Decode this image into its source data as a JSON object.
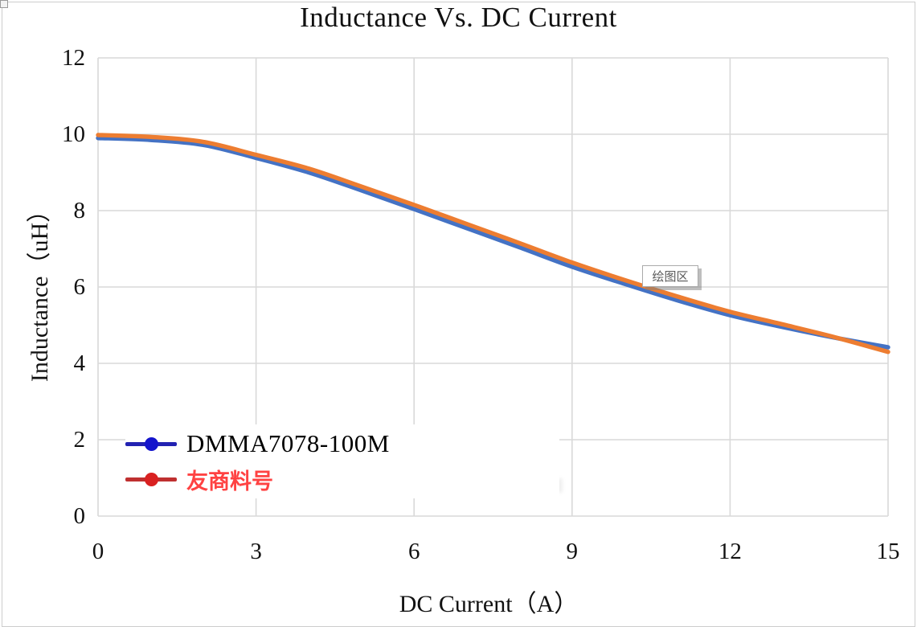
{
  "chart_data": {
    "type": "line",
    "title": "Inductance Vs. DC Current",
    "xlabel": "DC Current（A）",
    "ylabel": "Inductance（uH）",
    "xlim": [
      0,
      15
    ],
    "ylim": [
      0,
      12
    ],
    "x_ticks": [
      0,
      3,
      6,
      9,
      12,
      15
    ],
    "y_ticks": [
      0,
      2,
      4,
      6,
      8,
      10,
      12
    ],
    "grid": true,
    "gridline_color": "#d9d9d9",
    "legend_position": "inside-bottom-left",
    "x": [
      0,
      1,
      2,
      3,
      4,
      5,
      6,
      7,
      8,
      9,
      10,
      11,
      12,
      13,
      14,
      15
    ],
    "series": [
      {
        "name": "DMMA7078-100M",
        "line_color": "#4472c4",
        "legend_line_color": "#2222b2",
        "legend_marker_color": "#1414cc",
        "label_color": "#000000",
        "values": [
          9.9,
          9.85,
          9.72,
          9.38,
          9.0,
          8.53,
          8.04,
          7.54,
          7.04,
          6.53,
          6.08,
          5.65,
          5.26,
          4.95,
          4.67,
          4.42
        ]
      },
      {
        "name": "友商料号",
        "line_color": "#ed7d31",
        "legend_line_color": "#bf3030",
        "legend_marker_color": "#d92121",
        "label_color": "#ff4242",
        "values": [
          9.98,
          9.93,
          9.8,
          9.46,
          9.1,
          8.63,
          8.15,
          7.65,
          7.15,
          6.64,
          6.18,
          5.75,
          5.35,
          5.02,
          4.68,
          4.3
        ]
      }
    ]
  },
  "tooltip": {
    "text": "绘图区"
  }
}
